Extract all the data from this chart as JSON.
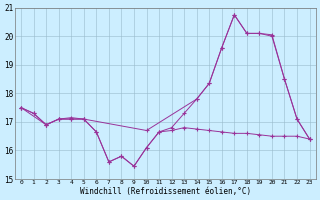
{
  "xlabel": "Windchill (Refroidissement éolien,°C)",
  "background_color": "#cceeff",
  "grid_color": "#99bbcc",
  "line_color": "#993399",
  "xlim": [
    -0.5,
    23.5
  ],
  "ylim": [
    15,
    21
  ],
  "yticks": [
    15,
    16,
    17,
    18,
    19,
    20,
    21
  ],
  "xticks": [
    0,
    1,
    2,
    3,
    4,
    5,
    6,
    7,
    8,
    9,
    10,
    11,
    12,
    13,
    14,
    15,
    16,
    17,
    18,
    19,
    20,
    21,
    22,
    23
  ],
  "line1_x": [
    0,
    1,
    2,
    3,
    4,
    5,
    6,
    7,
    8,
    9,
    10,
    11,
    12,
    13,
    14,
    15,
    16,
    17,
    18,
    19,
    20,
    21,
    22,
    23
  ],
  "line1_y": [
    17.5,
    17.3,
    16.9,
    17.1,
    17.1,
    17.1,
    16.65,
    15.6,
    15.8,
    15.45,
    16.1,
    16.65,
    16.7,
    16.8,
    16.75,
    16.7,
    16.65,
    16.6,
    16.6,
    16.55,
    16.5,
    16.5,
    16.5,
    16.4
  ],
  "line2_x": [
    0,
    1,
    2,
    3,
    4,
    5,
    6,
    7,
    8,
    9,
    10,
    11,
    12,
    13,
    14,
    15,
    16,
    17,
    18,
    19,
    20,
    21,
    22,
    23
  ],
  "line2_y": [
    17.5,
    17.3,
    16.9,
    17.1,
    17.1,
    17.1,
    16.65,
    15.6,
    15.8,
    15.45,
    16.1,
    16.65,
    16.8,
    17.3,
    17.8,
    18.35,
    19.6,
    20.75,
    20.1,
    20.1,
    20.05,
    18.5,
    17.1,
    16.4
  ],
  "line3_x": [
    0,
    2,
    3,
    4,
    5,
    10,
    14,
    15,
    16,
    17,
    18,
    19,
    20,
    21,
    22,
    23
  ],
  "line3_y": [
    17.5,
    16.9,
    17.1,
    17.15,
    17.1,
    16.7,
    17.8,
    18.35,
    19.6,
    20.75,
    20.1,
    20.1,
    20.0,
    18.5,
    17.1,
    16.4
  ]
}
